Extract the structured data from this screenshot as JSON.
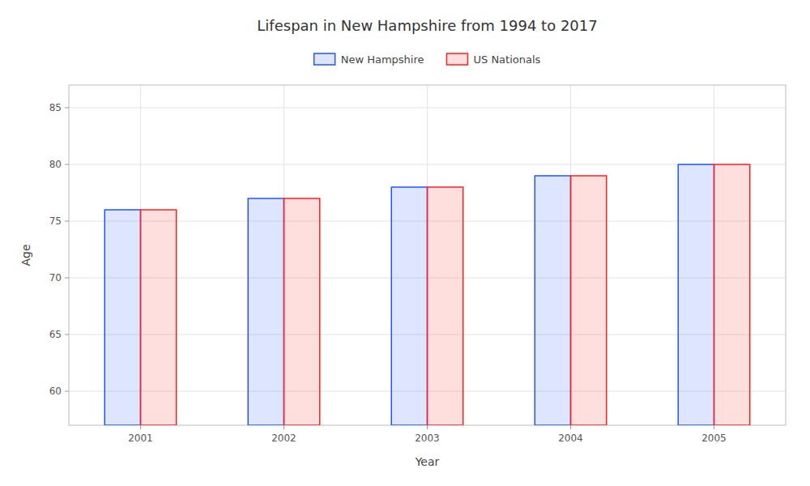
{
  "chart_data": {
    "type": "bar",
    "title": "Lifespan in New Hampshire from 1994 to 2017",
    "xlabel": "Year",
    "ylabel": "Age",
    "categories": [
      "2001",
      "2002",
      "2003",
      "2004",
      "2005"
    ],
    "series": [
      {
        "name": "New Hampshire",
        "color": "#2255ff",
        "values": [
          76,
          77,
          78,
          79,
          80
        ]
      },
      {
        "name": "US Nationals",
        "color": "#ff2222",
        "values": [
          76,
          77,
          78,
          79,
          80
        ]
      }
    ],
    "ylim": [
      57,
      87
    ],
    "yticks": [
      60,
      65,
      70,
      75,
      80,
      85
    ],
    "grid": true,
    "legend": "top"
  }
}
